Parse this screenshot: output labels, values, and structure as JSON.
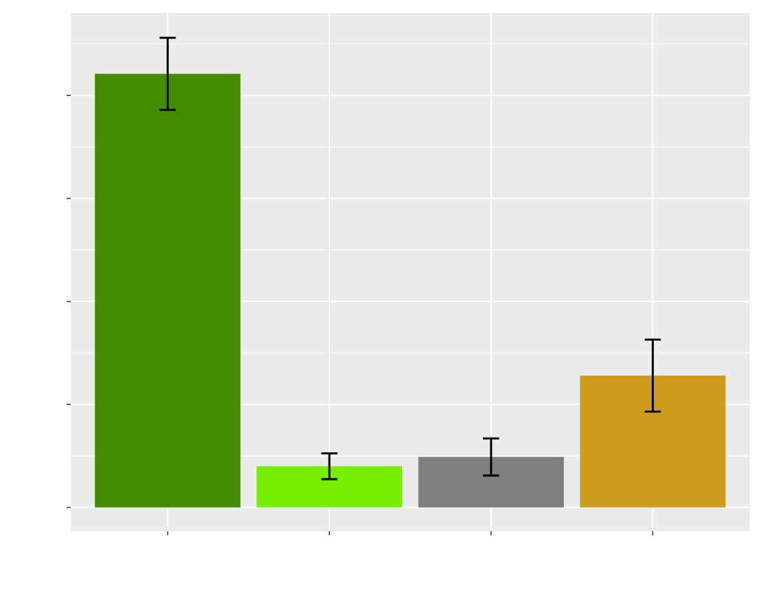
{
  "chart_data": {
    "type": "bar",
    "categories": [
      null,
      null,
      null,
      null
    ],
    "values": [
      4.21,
      0.4,
      0.49,
      1.28
    ],
    "errors": [
      0.35,
      0.125,
      0.18,
      0.35
    ],
    "colors": [
      "#458b00",
      "#76ee00",
      "#7f7f7f",
      "#cd9b1d"
    ],
    "ylim": [
      -0.23,
      4.8
    ],
    "yticks": [
      0,
      1,
      2,
      3,
      4
    ],
    "grid": true
  }
}
